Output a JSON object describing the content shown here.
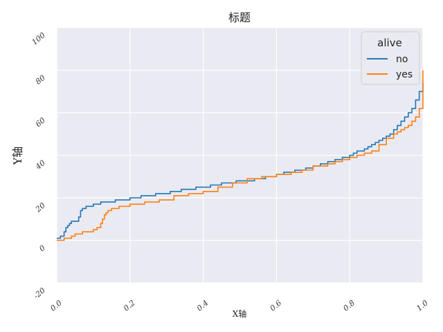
{
  "chart_data": {
    "type": "line",
    "title": "标题",
    "xlabel": "X轴",
    "ylabel": "Y轴",
    "xlim": [
      0.0,
      1.0
    ],
    "ylim": [
      -20,
      100
    ],
    "x_ticks": [
      "0.0",
      "0.2",
      "0.4",
      "0.6",
      "0.8",
      "1.0"
    ],
    "y_ticks": [
      "-20",
      "0",
      "20",
      "40",
      "60",
      "80",
      "100"
    ],
    "grid": true,
    "step": "post",
    "legend": {
      "title": "alive",
      "placement": "top-right"
    },
    "series": [
      {
        "name": "no",
        "color": "#1f77b4",
        "x": [
          0.0,
          0.01,
          0.02,
          0.025,
          0.03,
          0.035,
          0.04,
          0.05,
          0.06,
          0.065,
          0.07,
          0.08,
          0.1,
          0.12,
          0.16,
          0.2,
          0.23,
          0.27,
          0.31,
          0.34,
          0.38,
          0.42,
          0.45,
          0.49,
          0.54,
          0.57,
          0.6,
          0.62,
          0.65,
          0.68,
          0.7,
          0.72,
          0.74,
          0.76,
          0.78,
          0.8,
          0.81,
          0.82,
          0.84,
          0.85,
          0.86,
          0.87,
          0.88,
          0.89,
          0.9,
          0.91,
          0.92,
          0.93,
          0.94,
          0.95,
          0.96,
          0.97,
          0.98,
          0.99,
          1.0
        ],
        "y": [
          1,
          2,
          4,
          6,
          7,
          8,
          9,
          9,
          11,
          14,
          15,
          16,
          17,
          18,
          19,
          20,
          21,
          22,
          23,
          24,
          25,
          26,
          27,
          28,
          29,
          30,
          31,
          32,
          33,
          34,
          35,
          36,
          37,
          38,
          39,
          40,
          41,
          42,
          43,
          44,
          45,
          46,
          47,
          48,
          49,
          50,
          52,
          54,
          56,
          58,
          60,
          62,
          66,
          70,
          74
        ]
      },
      {
        "name": "yes",
        "color": "#ff7f0e",
        "x": [
          0.0,
          0.02,
          0.04,
          0.05,
          0.07,
          0.1,
          0.11,
          0.12,
          0.125,
          0.13,
          0.135,
          0.14,
          0.15,
          0.17,
          0.2,
          0.24,
          0.28,
          0.32,
          0.36,
          0.4,
          0.44,
          0.48,
          0.52,
          0.56,
          0.6,
          0.64,
          0.67,
          0.7,
          0.74,
          0.76,
          0.78,
          0.8,
          0.82,
          0.84,
          0.86,
          0.88,
          0.9,
          0.92,
          0.93,
          0.94,
          0.95,
          0.96,
          0.97,
          0.98,
          0.99,
          1.0
        ],
        "y": [
          0,
          1,
          2,
          3,
          4,
          5,
          6,
          8,
          10,
          12,
          13,
          14,
          15,
          16,
          17,
          18,
          19,
          21,
          22,
          23,
          25,
          27,
          29,
          30,
          31,
          32,
          33,
          35,
          36,
          37,
          38,
          39,
          40,
          41,
          42,
          45,
          48,
          50,
          51,
          52,
          53,
          54,
          56,
          58,
          62,
          80
        ]
      }
    ]
  }
}
